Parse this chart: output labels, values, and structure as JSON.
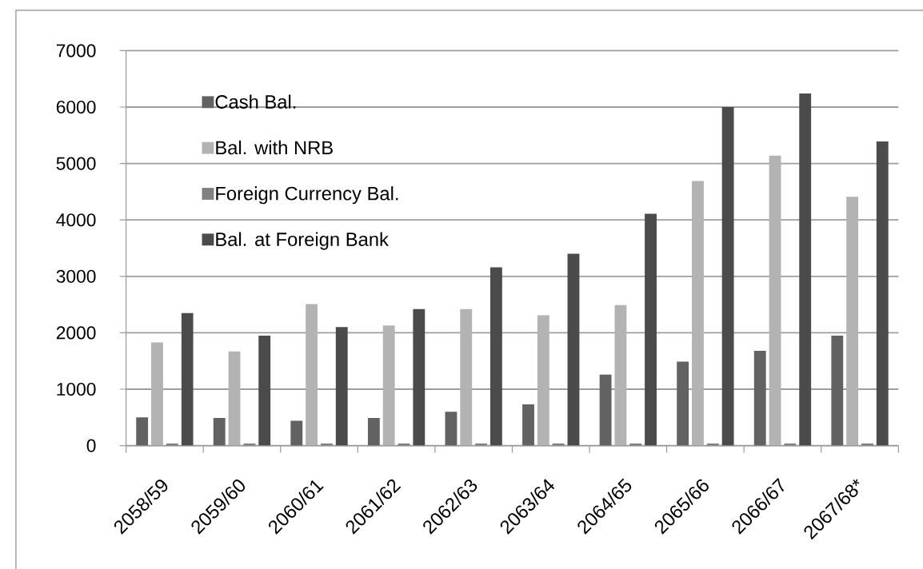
{
  "chart_data": {
    "type": "bar",
    "categories": [
      "2058/59",
      "2059/60",
      "2060/61",
      "2061/62",
      "2062/63",
      "2063/64",
      "2064/65",
      "2065/66",
      "2066/67",
      "2067/68*"
    ],
    "series": [
      {
        "name": "Cash Bal.",
        "color": "#626262",
        "values": [
          500,
          490,
          440,
          490,
          600,
          730,
          1260,
          1490,
          1680,
          1950
        ]
      },
      {
        "name": "Bal. with NRB",
        "color": "#b3b3b3",
        "values": [
          1830,
          1670,
          2510,
          2130,
          2420,
          2310,
          2490,
          4690,
          5140,
          4410
        ]
      },
      {
        "name": "Foreign Currency Bal.",
        "color": "#808080",
        "values": [
          40,
          40,
          40,
          40,
          40,
          40,
          40,
          40,
          40,
          40
        ]
      },
      {
        "name": "Bal. at Foreign Bank",
        "color": "#4b4b4b",
        "values": [
          2350,
          1950,
          2100,
          2420,
          3160,
          3400,
          4110,
          6000,
          6240,
          5390
        ]
      }
    ],
    "ylim": [
      0,
      7000
    ],
    "yticks": [
      0,
      1000,
      2000,
      3000,
      4000,
      5000,
      6000,
      7000
    ],
    "grid": "y",
    "legend": "top left"
  }
}
